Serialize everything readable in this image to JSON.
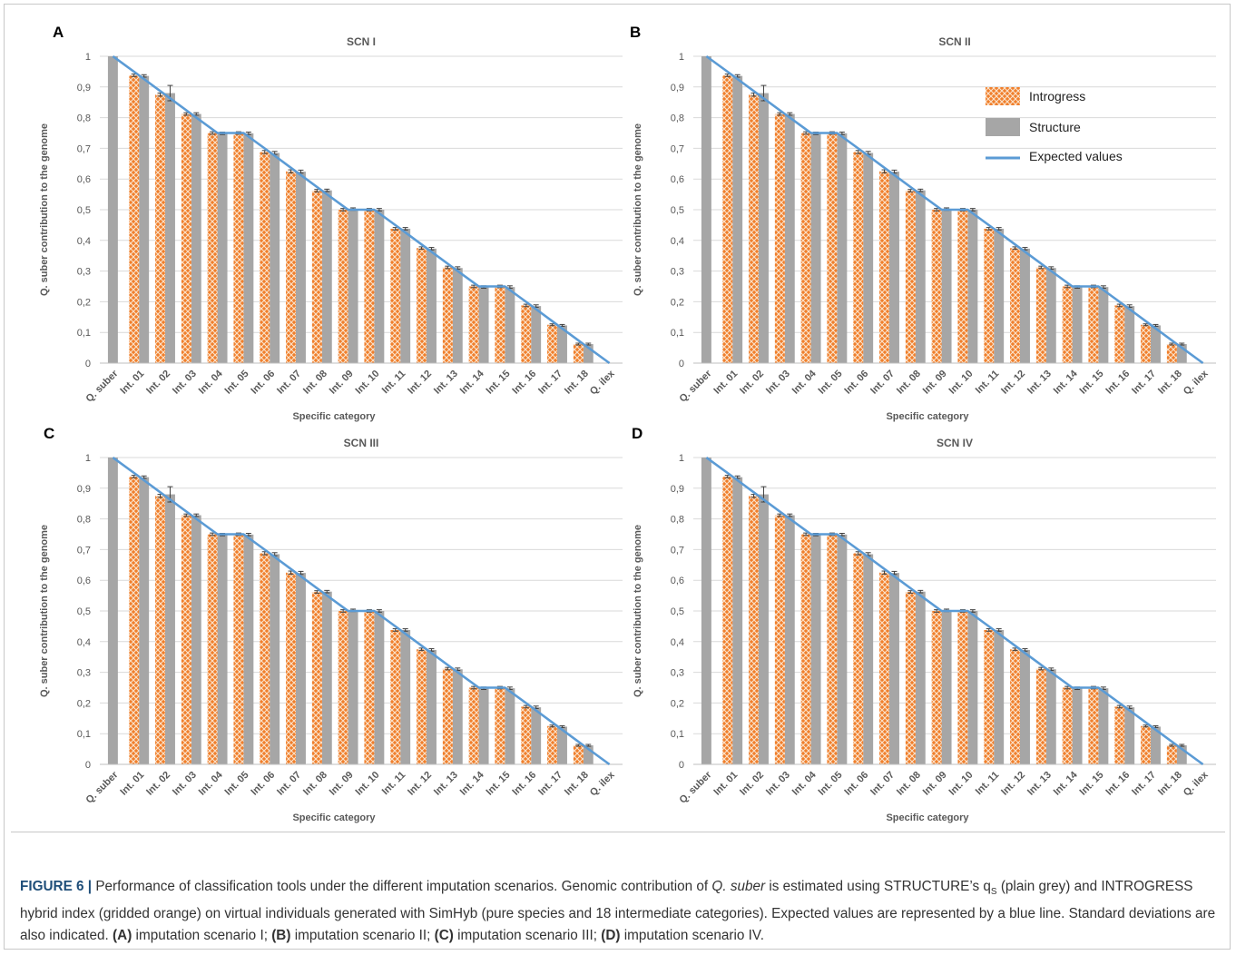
{
  "colors": {
    "introgress": "#f07f2c",
    "introgress_hatch": "#fbe3cc",
    "structure": "#a6a6a6",
    "expected": "#5b9bd5",
    "grid": "#d9d9d9",
    "text": "#595959"
  },
  "legend": {
    "introgress": "Introgress",
    "structure": "Structure",
    "expected": "Expected values"
  },
  "panels": [
    {
      "letter": "A",
      "title": "SCN I"
    },
    {
      "letter": "B",
      "title": "SCN II"
    },
    {
      "letter": "C",
      "title": "SCN III"
    },
    {
      "letter": "D",
      "title": "SCN IV"
    }
  ],
  "chart_data": {
    "type": "bar",
    "shared_by_all_panels": true,
    "title": "",
    "xlabel": "Specific category",
    "ylabel": "Q. suber  contribution to the genome",
    "ylim": [
      0,
      1
    ],
    "yticks": [
      "0",
      "0,1",
      "0,2",
      "0,3",
      "0,4",
      "0,5",
      "0,6",
      "0,7",
      "0,8",
      "0,9",
      "1"
    ],
    "legend_position": "upper-right of panel B",
    "grid": true,
    "categories": [
      "Q. suber",
      "Int. 01",
      "Int. 02",
      "Int. 03",
      "Int. 04",
      "Int. 05",
      "Int. 06",
      "Int. 07",
      "Int. 08",
      "Int. 09",
      "Int. 10",
      "Int. 11",
      "Int. 12",
      "Int. 13",
      "Int. 14",
      "Int. 15",
      "Int. 16",
      "Int. 17",
      "Int. 18",
      "Q. ilex"
    ],
    "series": [
      {
        "name": "Introgress",
        "values": [
          1.0,
          0.938,
          0.875,
          0.812,
          0.75,
          0.75,
          0.688,
          0.625,
          0.562,
          0.5,
          0.5,
          0.438,
          0.375,
          0.312,
          0.25,
          0.25,
          0.188,
          0.125,
          0.062,
          0.0
        ]
      },
      {
        "name": "Structure",
        "values": [
          1.0,
          0.936,
          0.88,
          0.812,
          0.749,
          0.749,
          0.685,
          0.624,
          0.563,
          0.502,
          0.5,
          0.438,
          0.373,
          0.31,
          0.248,
          0.248,
          0.186,
          0.123,
          0.062,
          0.0
        ]
      },
      {
        "name": "Expected values",
        "values": [
          1.0,
          0.938,
          0.875,
          0.812,
          0.75,
          0.75,
          0.688,
          0.625,
          0.562,
          0.5,
          0.5,
          0.438,
          0.375,
          0.312,
          0.25,
          0.25,
          0.188,
          0.125,
          0.062,
          0.0
        ]
      }
    ],
    "error_bars": {
      "introgress": [
        0,
        0.004,
        0.005,
        0.004,
        0.004,
        0.004,
        0.005,
        0.005,
        0.004,
        0.004,
        0.004,
        0.004,
        0.004,
        0.004,
        0.004,
        0.004,
        0.004,
        0.003,
        0.003,
        0
      ],
      "structure": [
        0,
        0.004,
        0.025,
        0.004,
        0.004,
        0.004,
        0.005,
        0.005,
        0.004,
        0.004,
        0.004,
        0.004,
        0.004,
        0.004,
        0.004,
        0.004,
        0.004,
        0.003,
        0.003,
        0
      ]
    }
  },
  "caption": {
    "label": "FIGURE 6 |",
    "t1": " Performance of classification tools under the different imputation scenarios. Genomic contribution of ",
    "qsuber": "Q. suber",
    "t2": " is estimated using ",
    "structure_name": "STRUCTURE",
    "t3": "’s q",
    "sub": "S",
    "t4": " (plain grey) and ",
    "introgress_name": "INTROGRESS",
    "t5": " hybrid index (gridded orange) on virtual individuals generated with SimHyb (pure species and 18 intermediate categories). Expected values are represented by a blue line. Standard deviations are also indicated. ",
    "a_label": "(A)",
    "a_text": " imputation scenario I; ",
    "b_label": "(B)",
    "b_text": " imputation scenario II; ",
    "c_label": "(C)",
    "c_text": " imputation scenario III; ",
    "d_label": "(D)",
    "d_text": " imputation scenario IV."
  }
}
